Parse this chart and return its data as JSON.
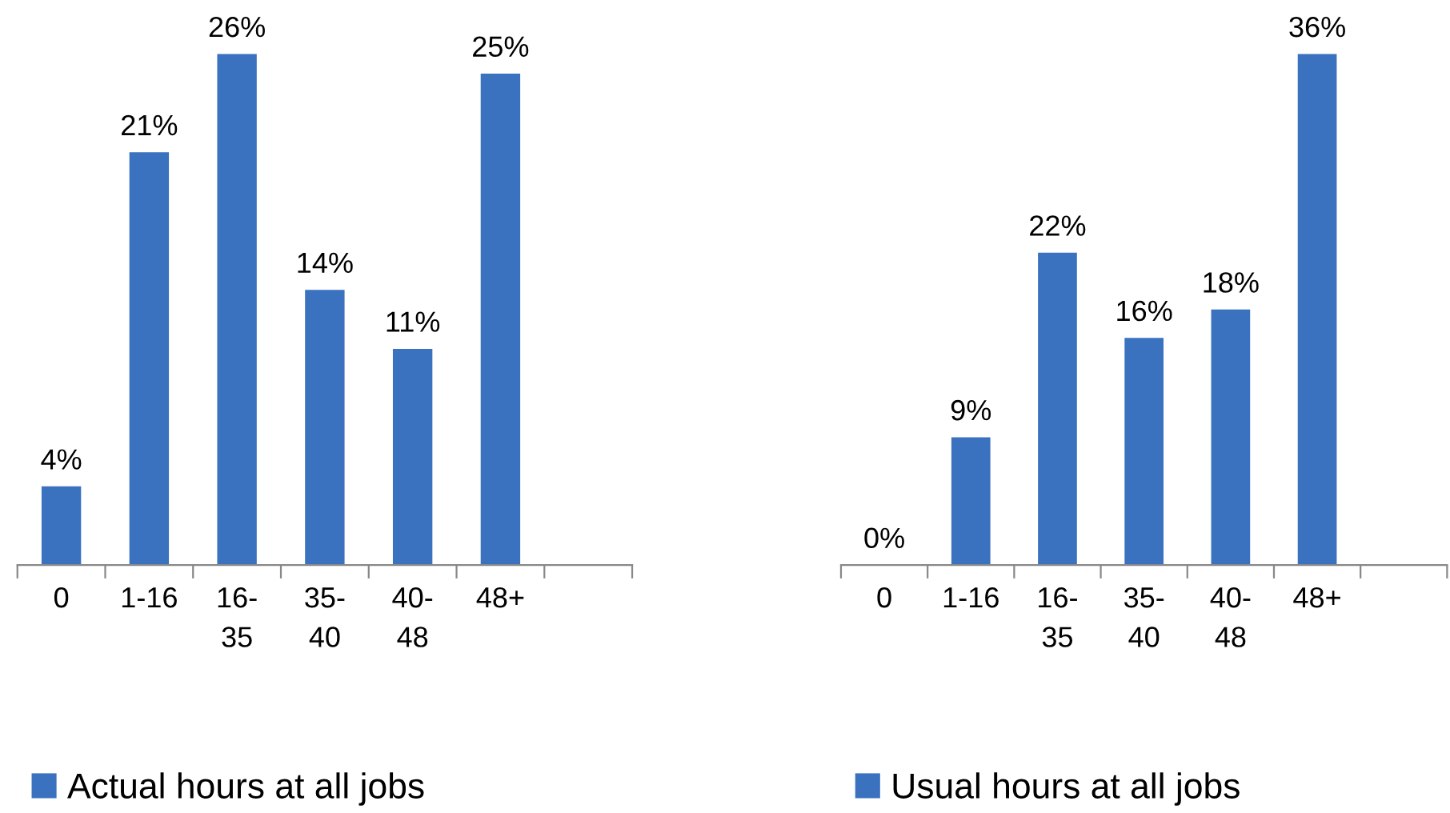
{
  "chart_data": [
    {
      "type": "bar",
      "categories": [
        "0",
        "1-16",
        "16-\n35",
        "35-\n40",
        "40-\n48",
        "48+",
        null
      ],
      "series": [
        {
          "name": "Actual hours at all jobs",
          "color": "#3a72c0",
          "values": [
            4,
            21,
            26,
            14,
            11,
            25,
            null
          ],
          "value_labels": [
            "4%",
            "21%",
            "26%",
            "14%",
            "11%",
            "25%",
            null
          ]
        }
      ],
      "legend": "bottom",
      "grid": false
    },
    {
      "type": "bar",
      "categories": [
        "0",
        "1-16",
        "16-\n35",
        "35-\n40",
        "40-\n48",
        "48+",
        null
      ],
      "series": [
        {
          "name": "Usual hours at all jobs",
          "color": "#3a72c0",
          "values": [
            0,
            9,
            22,
            16,
            18,
            36,
            null
          ],
          "value_labels": [
            "0%",
            "9%",
            "22%",
            "16%",
            "18%",
            "36%",
            null
          ]
        }
      ],
      "legend": "bottom",
      "grid": false
    }
  ]
}
